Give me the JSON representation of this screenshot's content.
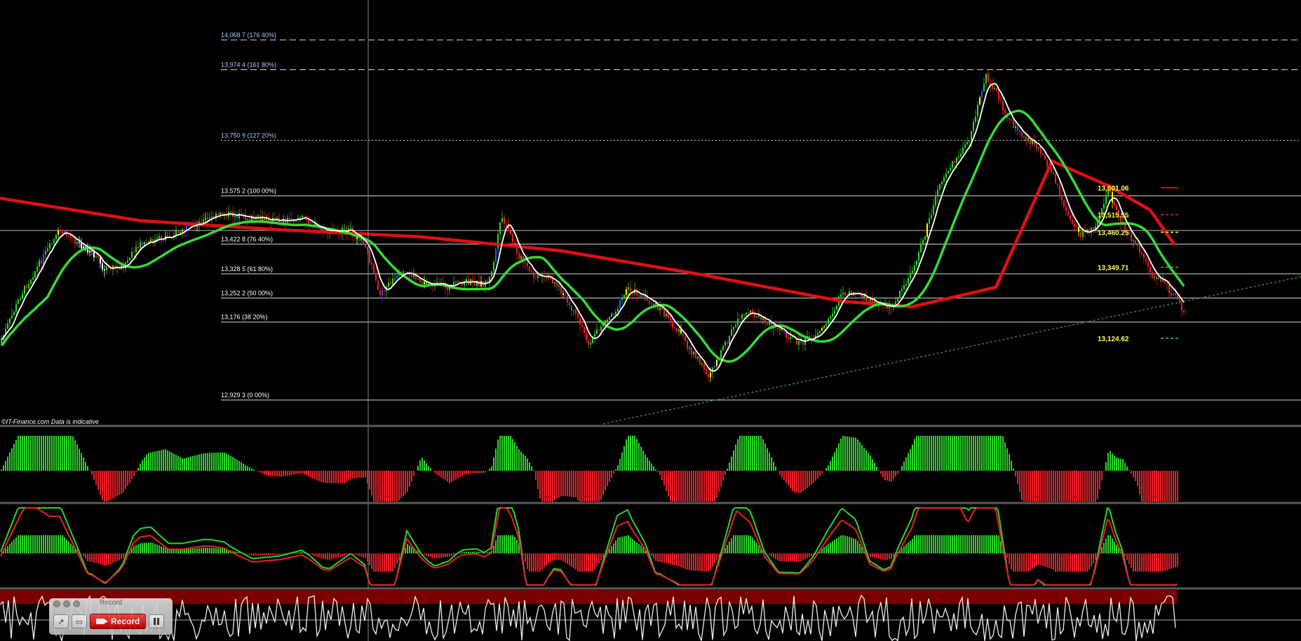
{
  "copyright": "©IT-Finance.com  Data is indicative",
  "fib_levels": [
    {
      "label": "14,068 7 (176 40%)",
      "price": 14068.7,
      "style": "dashed"
    },
    {
      "label": "13,974 4 (161 80%)",
      "price": 13974.4,
      "style": "dashed"
    },
    {
      "label": "13,750 9 (127 20%)",
      "price": 13750.9,
      "style": "dotted"
    },
    {
      "label": "13,575 2 (100 00%)",
      "price": 13575.2,
      "style": "solid"
    },
    {
      "label": "13,422 8 (76 40%)",
      "price": 13422.8,
      "style": "solid"
    },
    {
      "label": "13,328 5 (61 80%)",
      "price": 13328.5,
      "style": "solid"
    },
    {
      "label": "13,252 2 (50 00%)",
      "price": 13252.2,
      "style": "solid"
    },
    {
      "label": "13,176 (38 20%)",
      "price": 13176.0,
      "style": "solid"
    },
    {
      "label": "12,929 3 (0 00%)",
      "price": 12929.3,
      "style": "solid"
    }
  ],
  "right_levels": [
    {
      "label": "13,601.06",
      "price": 13601.06
    },
    {
      "label": "13,515.55",
      "price": 13515.55
    },
    {
      "label": "13,460.25",
      "price": 13460.25
    },
    {
      "label": "13,349.71",
      "price": 13349.71
    },
    {
      "label": "13,124.62",
      "price": 13124.62
    }
  ],
  "colors": {
    "bull": "#2bd42b",
    "bear": "#e8202a",
    "ma_fast": "#ffffff",
    "ma_mid": "#33dd33",
    "ma_slow": "#e01010",
    "trendline": "#2a8a2a",
    "osc_band": "#7a0000"
  },
  "recorder": {
    "title": "Record",
    "record_label": "Record",
    "tools": [
      "pen-icon",
      "screen-icon"
    ]
  }
}
